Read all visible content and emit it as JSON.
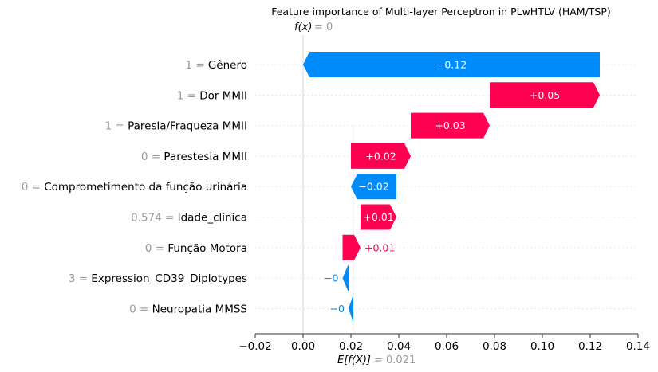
{
  "chart_data": {
    "type": "waterfall",
    "title": "Feature importance of Multi-layer Perceptron in PLwHTLV (HAM/TSP)",
    "fx_label": "f(x)",
    "fx_value": "= 0",
    "base_label": "E[f(X)]",
    "base_value_text": "= 0.021",
    "xlim": [
      -0.02,
      0.14
    ],
    "x_ticks": [
      {
        "value": -0.02,
        "label": "−0.02"
      },
      {
        "value": 0.0,
        "label": "0.00"
      },
      {
        "value": 0.02,
        "label": "0.02"
      },
      {
        "value": 0.04,
        "label": "0.04"
      },
      {
        "value": 0.06,
        "label": "0.06"
      },
      {
        "value": 0.08,
        "label": "0.08"
      },
      {
        "value": 0.1,
        "label": "0.10"
      },
      {
        "value": 0.12,
        "label": "0.12"
      },
      {
        "value": 0.14,
        "label": "0.14"
      }
    ],
    "features": [
      {
        "value_text": "1 =",
        "name": "Gênero",
        "start": 0.124,
        "end": 0.0,
        "label": "−0.12",
        "label_outside": false
      },
      {
        "value_text": "1 =",
        "name": "Dor MMII",
        "start": 0.078,
        "end": 0.124,
        "label": "+0.05",
        "label_outside": false
      },
      {
        "value_text": "1 =",
        "name": "Paresia/Fraqueza MMII",
        "start": 0.045,
        "end": 0.078,
        "label": "+0.03",
        "label_outside": false
      },
      {
        "value_text": "0 =",
        "name": "Parestesia MMII",
        "start": 0.02,
        "end": 0.045,
        "label": "+0.02",
        "label_outside": false
      },
      {
        "value_text": "0 =",
        "name": "Comprometimento da função urinária",
        "start": 0.039,
        "end": 0.02,
        "label": "−0.02",
        "label_outside": false
      },
      {
        "value_text": "0.574 =",
        "name": "Idade_clinica",
        "start": 0.024,
        "end": 0.039,
        "label": "+0.01",
        "label_outside": false
      },
      {
        "value_text": "0 =",
        "name": "Função Motora",
        "start": 0.0165,
        "end": 0.024,
        "label": "+0.01",
        "label_outside": true
      },
      {
        "value_text": "3 =",
        "name": "Expression_CD39_Diplotypes",
        "start": 0.019,
        "end": 0.0165,
        "label": "−0",
        "label_outside": true
      },
      {
        "value_text": "0 =",
        "name": "Neuropatia MMSS",
        "start": 0.021,
        "end": 0.019,
        "label": "−0",
        "label_outside": true
      }
    ],
    "colors": {
      "positive": "#ff0051",
      "negative": "#008bfb",
      "axis": "#333333",
      "feature_value_text": "#999999",
      "grid": "#cccccc"
    }
  }
}
